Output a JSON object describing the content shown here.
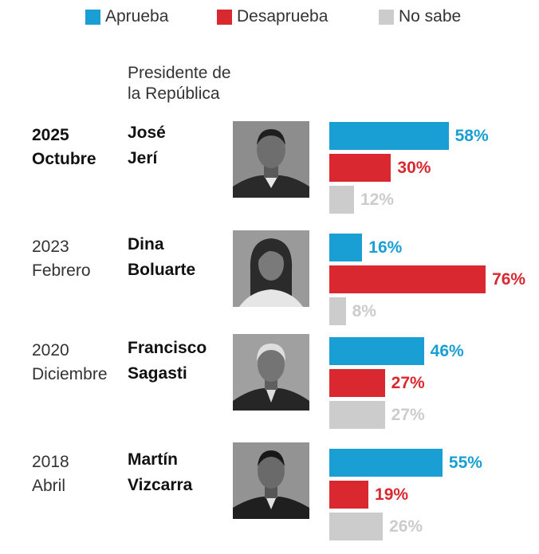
{
  "colors": {
    "aprueba": "#1a9fd4",
    "desaprueba": "#d9282f",
    "nosabe": "#cccccc"
  },
  "legend": [
    {
      "key": "aprueba",
      "label": "Aprueba"
    },
    {
      "key": "desaprueba",
      "label": "Desaprueba"
    },
    {
      "key": "nosabe",
      "label": "No sabe"
    }
  ],
  "column_header": {
    "line1": "Presidente de",
    "line2": "la República"
  },
  "chart_data": {
    "type": "bar",
    "orientation": "horizontal",
    "title": "",
    "categories": [
      "José Jerí",
      "Dina Boluarte",
      "Francisco Sagasti",
      "Martín Vizcarra"
    ],
    "series": [
      {
        "name": "Aprueba",
        "values": [
          58,
          16,
          46,
          55
        ]
      },
      {
        "name": "Desaprueba",
        "values": [
          30,
          76,
          27,
          19
        ]
      },
      {
        "name": "No sabe",
        "values": [
          12,
          8,
          27,
          26
        ]
      }
    ],
    "xlim": [
      0,
      100
    ],
    "value_suffix": "%"
  },
  "rows": [
    {
      "year": "2025",
      "month": "Octubre",
      "name_line1": "José",
      "name_line2": "Jerí",
      "photo_icon": "president-portrait-icon",
      "labels": [
        "58%",
        "30%",
        "12%"
      ]
    },
    {
      "year": "2023",
      "month": "Febrero",
      "name_line1": "Dina",
      "name_line2": "Boluarte",
      "photo_icon": "president-portrait-icon",
      "labels": [
        "16%",
        "76%",
        "8%"
      ]
    },
    {
      "year": "2020",
      "month": "Diciembre",
      "name_line1": "Francisco",
      "name_line2": "Sagasti",
      "photo_icon": "president-portrait-icon",
      "labels": [
        "46%",
        "27%",
        "27%"
      ]
    },
    {
      "year": "2018",
      "month": "Abril",
      "name_line1": "Martín",
      "name_line2": "Vizcarra",
      "photo_icon": "president-portrait-icon",
      "labels": [
        "55%",
        "19%",
        "26%"
      ]
    }
  ]
}
